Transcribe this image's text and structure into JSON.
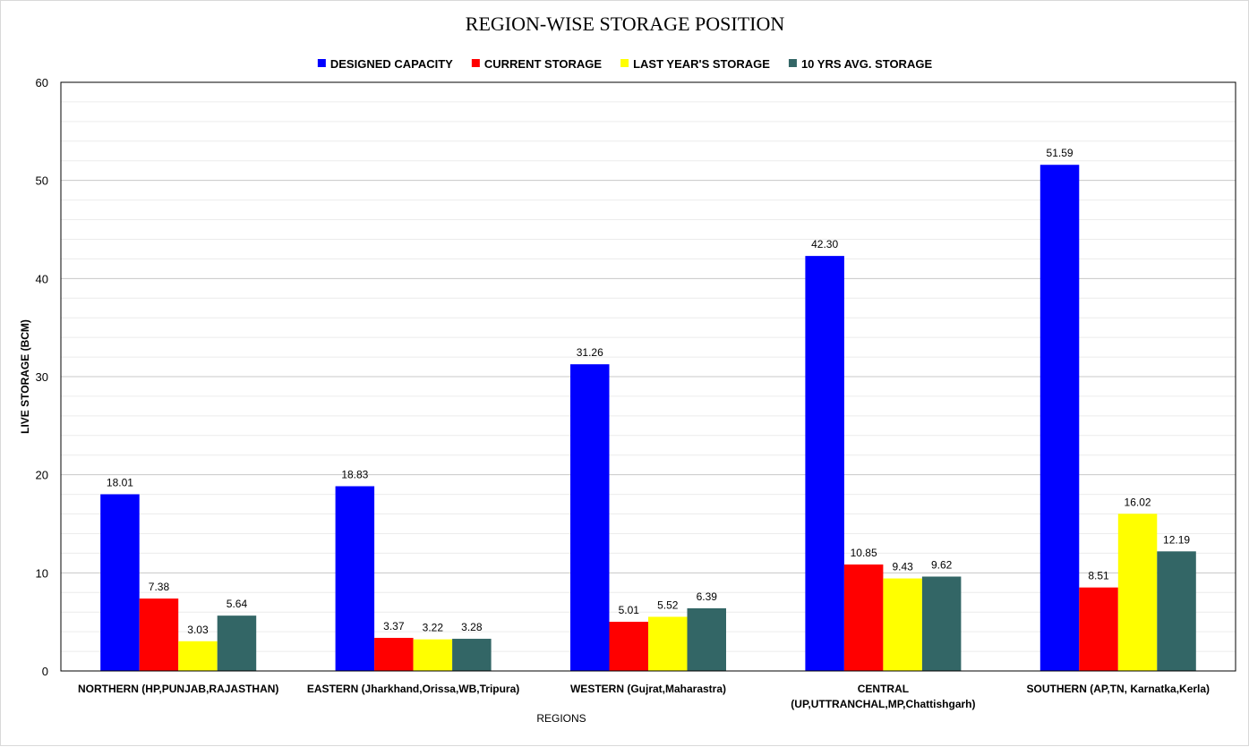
{
  "chart_data": {
    "type": "bar",
    "title": "REGION-WISE STORAGE POSITION",
    "xlabel": "REGIONS",
    "ylabel": "LIVE STORAGE (BCM)",
    "ylim": [
      0,
      60
    ],
    "yticks": [
      0,
      10,
      20,
      30,
      40,
      50,
      60
    ],
    "grid": true,
    "legend_position": "top",
    "categories": [
      [
        "NORTHERN (HP,PUNJAB,RAJASTHAN)"
      ],
      [
        "EASTERN (Jharkhand,Orissa,WB,Tripura)"
      ],
      [
        "WESTERN (Gujrat,Maharastra)"
      ],
      [
        "CENTRAL",
        "(UP,UTTRANCHAL,MP,Chattishgarh)"
      ],
      [
        "SOUTHERN (AP,TN, Karnatka,Kerla)"
      ]
    ],
    "series": [
      {
        "name": "DESIGNED CAPACITY",
        "color": "#0000ff",
        "values": [
          18.01,
          18.83,
          31.26,
          42.3,
          51.59
        ],
        "labels": [
          "18.01",
          "18.83",
          "31.26",
          "42.30",
          "51.59"
        ]
      },
      {
        "name": "CURRENT STORAGE",
        "color": "#ff0000",
        "values": [
          7.38,
          3.37,
          5.01,
          10.85,
          8.51
        ],
        "labels": [
          "7.38",
          "3.37",
          "5.01",
          "10.85",
          "8.51"
        ]
      },
      {
        "name": "LAST YEAR'S STORAGE",
        "color": "#ffff00",
        "values": [
          3.03,
          3.22,
          5.52,
          9.43,
          16.02
        ],
        "labels": [
          "3.03",
          "3.22",
          "5.52",
          "9.43",
          "16.02"
        ]
      },
      {
        "name": "10 YRS AVG. STORAGE",
        "color": "#336666",
        "values": [
          5.64,
          3.28,
          6.39,
          9.62,
          12.19
        ],
        "labels": [
          "5.64",
          "3.28",
          "6.39",
          "9.62",
          "12.19"
        ]
      }
    ]
  }
}
